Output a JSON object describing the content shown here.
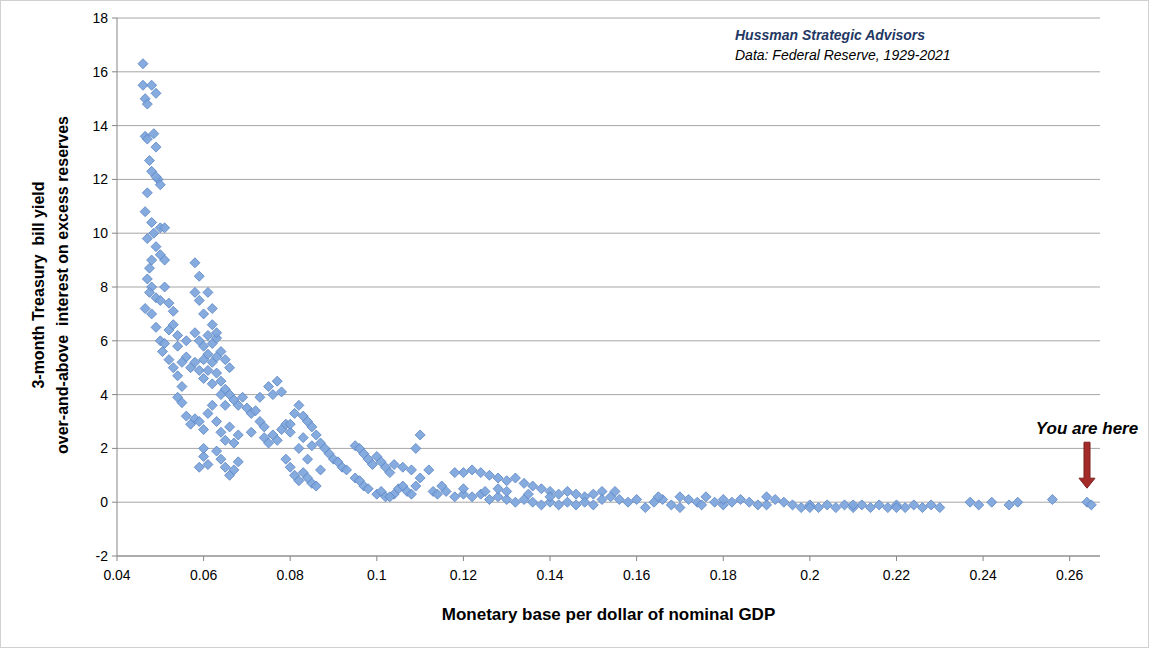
{
  "chart_data": {
    "type": "scatter",
    "title": "Hussman Strategic Advisors",
    "subtitle": "Data: Federal Reserve, 1929-2021",
    "xlabel": "Monetary base per dollar of nominal GDP",
    "ylabel": [
      "3-month Treasury  bill yield",
      "over-and-above  interest on excess reserves"
    ],
    "annotations": [
      {
        "text": "You are here",
        "x": 0.264,
        "y": 0.0
      }
    ],
    "xlim": [
      0.04,
      0.267
    ],
    "xticks": [
      0.04,
      0.06,
      0.08,
      0.1,
      0.12,
      0.14,
      0.16,
      0.18,
      0.2,
      0.22,
      0.24,
      0.26
    ],
    "ylim": [
      -2,
      18
    ],
    "yticks": [
      -2,
      0,
      2,
      4,
      6,
      8,
      10,
      12,
      14,
      16,
      18
    ],
    "grid": true,
    "x": [
      0.046,
      0.046,
      0.0465,
      0.047,
      0.048,
      0.049,
      0.0465,
      0.047,
      0.0485,
      0.049,
      0.0475,
      0.048,
      0.0495,
      0.047,
      0.0465,
      0.048,
      0.0485,
      0.05,
      0.047,
      0.049,
      0.048,
      0.0475,
      0.05,
      0.051,
      0.047,
      0.048,
      0.0475,
      0.049,
      0.0465,
      0.048,
      0.05,
      0.051,
      0.052,
      0.049,
      0.05,
      0.0505,
      0.051,
      0.052,
      0.053,
      0.054,
      0.052,
      0.053,
      0.054,
      0.055,
      0.054,
      0.055,
      0.056,
      0.057,
      0.058,
      0.056,
      0.057,
      0.055,
      0.05,
      0.049,
      0.051,
      0.053,
      0.054,
      0.056,
      0.058,
      0.059,
      0.058,
      0.059,
      0.061,
      0.06,
      0.062,
      0.058,
      0.059,
      0.06,
      0.061,
      0.062,
      0.063,
      0.064,
      0.065,
      0.066,
      0.058,
      0.059,
      0.06,
      0.061,
      0.062,
      0.063,
      0.064,
      0.065,
      0.066,
      0.067,
      0.068,
      0.069,
      0.07,
      0.071,
      0.059,
      0.06,
      0.061,
      0.062,
      0.063,
      0.064,
      0.065,
      0.063,
      0.064,
      0.065,
      0.066,
      0.067,
      0.068,
      0.06,
      0.061,
      0.059,
      0.06,
      0.062,
      0.063,
      0.064,
      0.065,
      0.066,
      0.067,
      0.068,
      0.062,
      0.063,
      0.06,
      0.061,
      0.072,
      0.073,
      0.074,
      0.075,
      0.076,
      0.077,
      0.078,
      0.074,
      0.075,
      0.076,
      0.077,
      0.078,
      0.079,
      0.08,
      0.081,
      0.082,
      0.083,
      0.084,
      0.085,
      0.086,
      0.087,
      0.088,
      0.089,
      0.09,
      0.079,
      0.08,
      0.081,
      0.082,
      0.083,
      0.084,
      0.085,
      0.086,
      0.083,
      0.084,
      0.082,
      0.085,
      0.073,
      0.071,
      0.08,
      0.087,
      0.091,
      0.092,
      0.093,
      0.095,
      0.096,
      0.097,
      0.098,
      0.099,
      0.1,
      0.101,
      0.102,
      0.103,
      0.095,
      0.096,
      0.097,
      0.098,
      0.1,
      0.101,
      0.102,
      0.104,
      0.105,
      0.106,
      0.107,
      0.108,
      0.109,
      0.11,
      0.109,
      0.108,
      0.106,
      0.103,
      0.104,
      0.112,
      0.113,
      0.11,
      0.114,
      0.116,
      0.118,
      0.12,
      0.12,
      0.122,
      0.124,
      0.126,
      0.128,
      0.13,
      0.132,
      0.134,
      0.136,
      0.138,
      0.14,
      0.142,
      0.144,
      0.146,
      0.148,
      0.15,
      0.152,
      0.154,
      0.155,
      0.122,
      0.124,
      0.126,
      0.128,
      0.13,
      0.132,
      0.134,
      0.136,
      0.138,
      0.14,
      0.142,
      0.144,
      0.146,
      0.148,
      0.15,
      0.152,
      0.118,
      0.125,
      0.128,
      0.13,
      0.135,
      0.14,
      0.115,
      0.12,
      0.156,
      0.158,
      0.16,
      0.162,
      0.164,
      0.166,
      0.168,
      0.17,
      0.172,
      0.174,
      0.175,
      0.176,
      0.178,
      0.18,
      0.182,
      0.184,
      0.186,
      0.188,
      0.19,
      0.192,
      0.194,
      0.196,
      0.198,
      0.2,
      0.202,
      0.204,
      0.206,
      0.208,
      0.21,
      0.212,
      0.214,
      0.216,
      0.218,
      0.22,
      0.222,
      0.224,
      0.226,
      0.228,
      0.23,
      0.237,
      0.239,
      0.242,
      0.246,
      0.248,
      0.256,
      0.264,
      0.265,
      0.165,
      0.17,
      0.18,
      0.19,
      0.2,
      0.21,
      0.22
    ],
    "series": [
      {
        "name": "3-month Treasury bill yield over-and-above interest on excess reserves",
        "color": "#7ea6dd",
        "marker": "diamond",
        "values": [
          16.3,
          15.5,
          15.0,
          14.8,
          15.5,
          15.2,
          13.6,
          13.5,
          13.7,
          13.2,
          12.7,
          12.3,
          12.0,
          11.5,
          10.8,
          10.4,
          10.0,
          10.2,
          9.8,
          9.5,
          9.0,
          8.7,
          9.2,
          9.0,
          8.3,
          8.0,
          7.8,
          7.6,
          7.2,
          7.0,
          7.5,
          8.0,
          7.4,
          6.5,
          6.0,
          5.6,
          5.9,
          6.4,
          6.6,
          6.2,
          5.3,
          5.0,
          4.7,
          4.3,
          3.9,
          3.7,
          3.2,
          2.9,
          3.1,
          5.4,
          5.0,
          5.2,
          11.8,
          12.1,
          10.2,
          7.1,
          5.8,
          6.0,
          8.9,
          8.4,
          7.8,
          7.5,
          7.8,
          7.0,
          6.6,
          6.3,
          6.0,
          5.8,
          5.5,
          5.9,
          6.1,
          5.6,
          5.3,
          5.0,
          5.2,
          4.9,
          4.6,
          4.9,
          4.4,
          4.8,
          4.5,
          4.2,
          4.0,
          3.8,
          3.6,
          3.9,
          3.5,
          3.3,
          3.0,
          2.7,
          3.3,
          3.6,
          3.0,
          2.6,
          2.3,
          1.9,
          1.6,
          1.3,
          1.0,
          1.2,
          1.5,
          1.7,
          1.4,
          1.3,
          2.0,
          5.2,
          5.4,
          4.0,
          3.6,
          2.8,
          2.2,
          2.5,
          7.2,
          6.3,
          5.3,
          6.2,
          3.4,
          3.0,
          2.8,
          4.3,
          4.0,
          4.5,
          4.1,
          2.4,
          2.2,
          2.5,
          2.3,
          2.7,
          2.9,
          2.6,
          3.3,
          3.6,
          3.2,
          3.0,
          2.8,
          2.5,
          2.2,
          2.0,
          1.8,
          1.6,
          1.6,
          1.3,
          1.0,
          0.8,
          1.1,
          0.9,
          0.7,
          0.6,
          2.4,
          1.6,
          2.0,
          2.1,
          3.9,
          2.6,
          2.9,
          1.2,
          1.5,
          1.3,
          1.2,
          2.1,
          2.0,
          1.8,
          1.6,
          1.4,
          1.7,
          1.5,
          1.3,
          1.1,
          0.9,
          0.8,
          0.6,
          0.5,
          0.3,
          0.4,
          0.2,
          0.3,
          0.5,
          0.6,
          0.4,
          0.3,
          0.6,
          2.5,
          2.0,
          1.2,
          1.3,
          0.2,
          1.4,
          1.2,
          0.4,
          0.9,
          0.3,
          0.4,
          0.2,
          0.3,
          1.1,
          1.2,
          1.1,
          1.0,
          0.9,
          0.8,
          0.9,
          0.7,
          0.6,
          0.5,
          0.4,
          0.3,
          0.4,
          0.3,
          0.2,
          0.3,
          0.4,
          0.2,
          0.4,
          0.2,
          0.3,
          0.1,
          0.2,
          0.1,
          0.0,
          0.1,
          0.0,
          -0.1,
          0.0,
          -0.1,
          0.0,
          -0.1,
          0.0,
          -0.1,
          0.1,
          1.1,
          0.4,
          0.5,
          0.4,
          0.3,
          0.2,
          0.6,
          0.5,
          0.1,
          0.0,
          0.1,
          -0.2,
          0.0,
          0.1,
          -0.1,
          0.2,
          0.1,
          0.0,
          -0.1,
          0.2,
          0.0,
          -0.1,
          0.0,
          0.1,
          0.0,
          -0.1,
          0.2,
          0.1,
          0.0,
          -0.1,
          -0.2,
          -0.1,
          -0.2,
          -0.1,
          -0.2,
          -0.1,
          -0.2,
          -0.1,
          -0.2,
          -0.1,
          -0.2,
          -0.1,
          -0.2,
          -0.1,
          -0.2,
          -0.1,
          -0.2,
          0.0,
          -0.1,
          0.0,
          -0.1,
          0.0,
          0.1,
          0.0,
          -0.1,
          0.2,
          -0.2,
          0.1,
          -0.1,
          -0.2,
          -0.1,
          -0.2
        ]
      }
    ]
  }
}
